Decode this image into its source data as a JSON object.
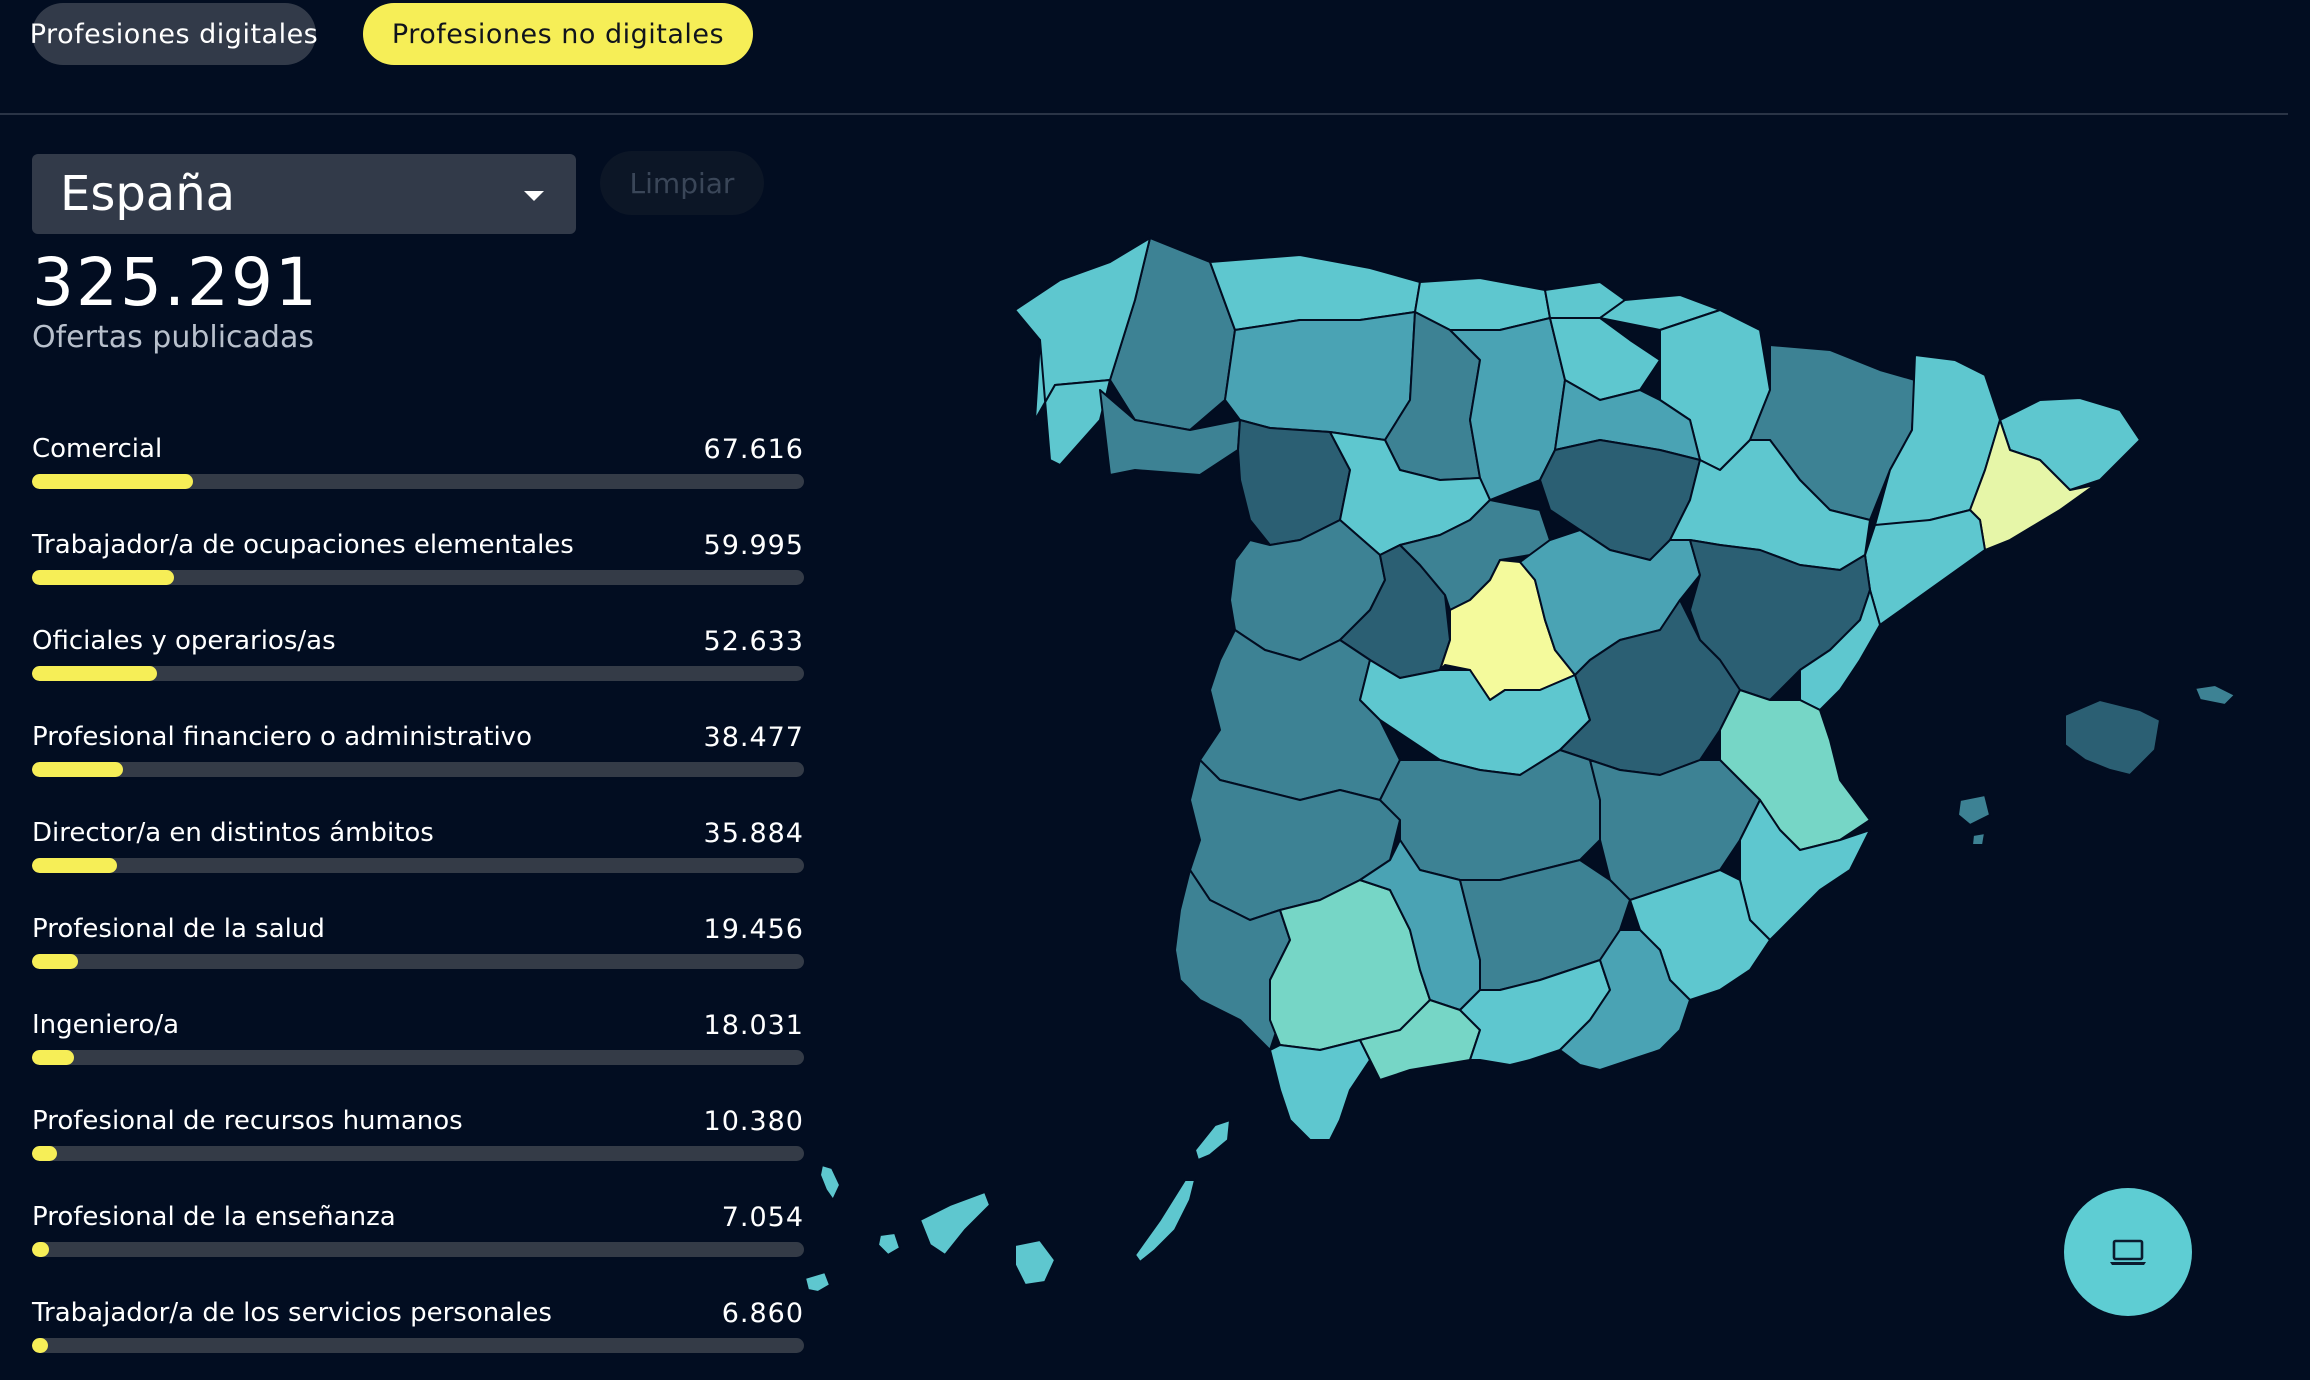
{
  "tabs": {
    "digital": "Profesiones digitales",
    "no_digital": "Profesiones no digitales",
    "active": "no_digital"
  },
  "selector": {
    "region": "España",
    "clear": "Limpiar"
  },
  "summary": {
    "total": "325.291",
    "label": "Ofertas publicadas"
  },
  "professions": [
    {
      "name": "Comercial",
      "value": "67.616",
      "share": 0.208
    },
    {
      "name": "Trabajador/a de ocupaciones elementales",
      "value": "59.995",
      "share": 0.184
    },
    {
      "name": "Oficiales y operarios/as",
      "value": "52.633",
      "share": 0.162
    },
    {
      "name": "Profesional financiero o administrativo",
      "value": "38.477",
      "share": 0.118
    },
    {
      "name": "Director/a en distintos ámbitos",
      "value": "35.884",
      "share": 0.11
    },
    {
      "name": "Profesional de la salud",
      "value": "19.456",
      "share": 0.06
    },
    {
      "name": "Ingeniero/a",
      "value": "18.031",
      "share": 0.055
    },
    {
      "name": "Profesional de recursos humanos",
      "value": "10.380",
      "share": 0.032
    },
    {
      "name": "Profesional de la enseñanza",
      "value": "7.054",
      "share": 0.022
    },
    {
      "name": "Trabajador/a de los servicios personales",
      "value": "6.860",
      "share": 0.021
    }
  ],
  "colors": {
    "background": "#020d21",
    "accent": "#f6ee57",
    "map_highlight": "#f4fa9c",
    "map_scale": [
      "#2b5f73",
      "#3d8294",
      "#4aa3b4",
      "#5ec7cf",
      "#76d6c6",
      "#e6f6a8"
    ]
  },
  "fab_icon": "laptop-icon"
}
